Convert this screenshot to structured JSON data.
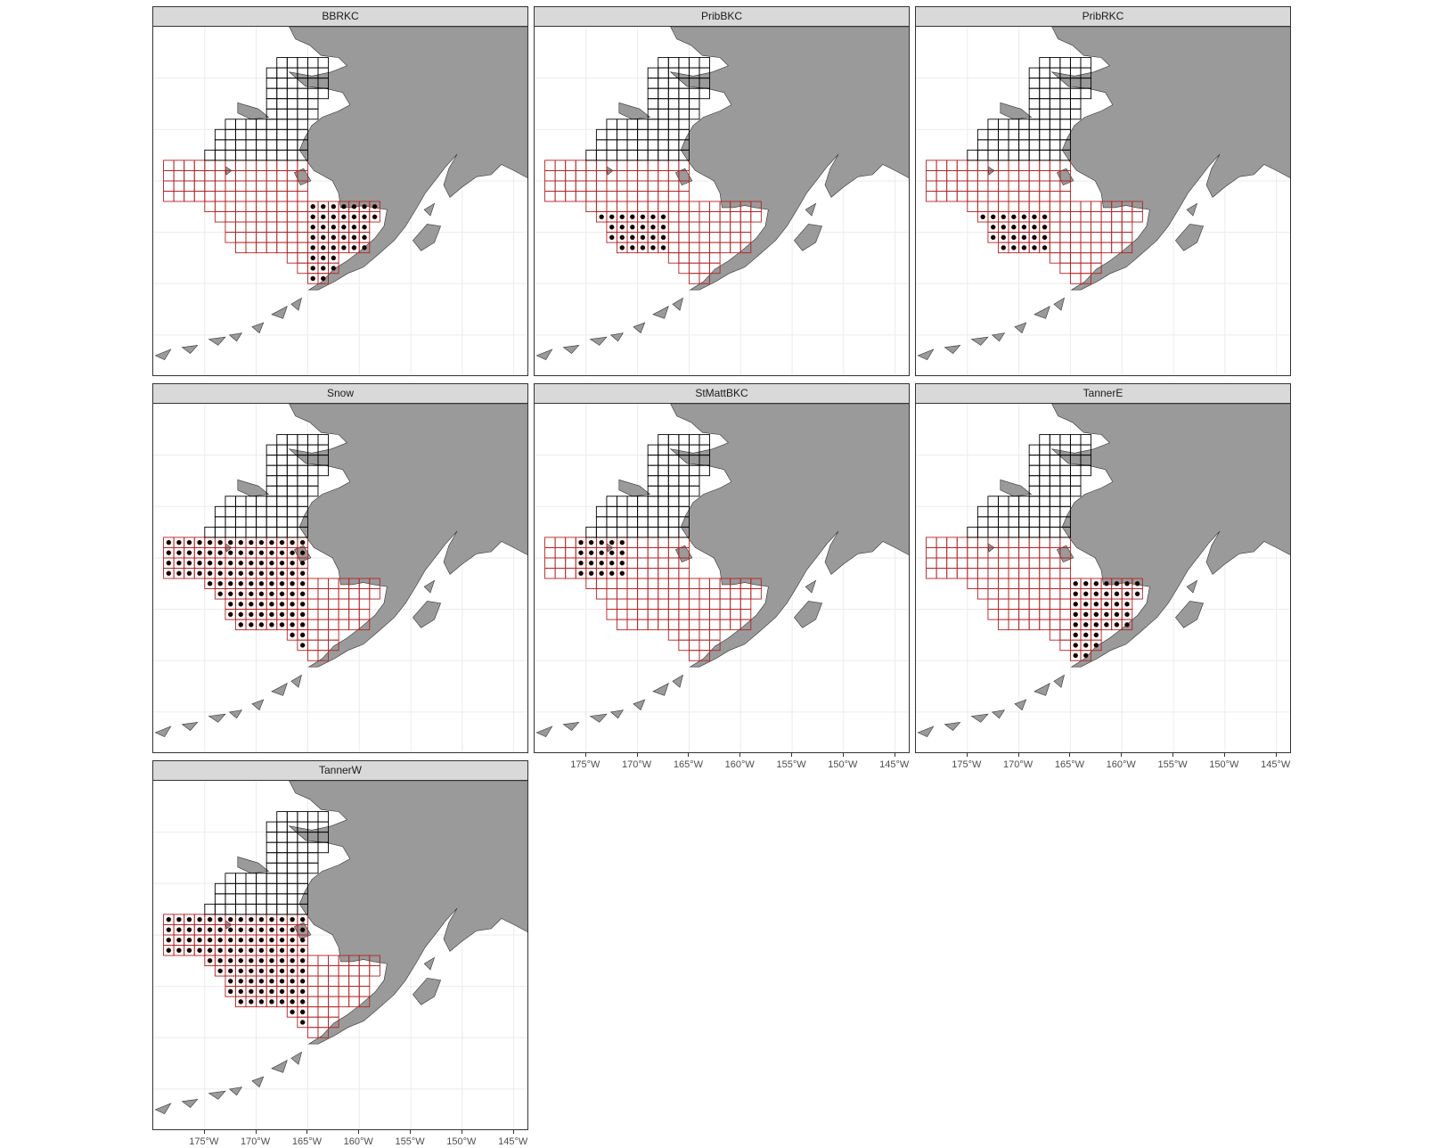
{
  "figure": {
    "panels": [
      {
        "label": "BBRKC",
        "highlight": "east"
      },
      {
        "label": "PribBKC",
        "highlight": "pribilof"
      },
      {
        "label": "PribRKC",
        "highlight": "pribilof"
      },
      {
        "label": "Snow",
        "highlight": "west_wide"
      },
      {
        "label": "StMattBKC",
        "highlight": "stmatthew"
      },
      {
        "label": "TannerE",
        "highlight": "east"
      },
      {
        "label": "TannerW",
        "highlight": "west_wide"
      }
    ],
    "x_axis": {
      "ticks": [
        "175°W",
        "170°W",
        "165°W",
        "160°W",
        "155°W",
        "150°W",
        "145°W"
      ],
      "tick_values": [
        -175,
        -170,
        -165,
        -160,
        -155,
        -150,
        -145
      ],
      "range": [
        -180,
        -143.5
      ]
    },
    "y_axis": {
      "ticks": [],
      "range": [
        50.5,
        67.5
      ]
    },
    "grid": true,
    "colors": {
      "land": "#9a9a9a",
      "north_grid": "#000000",
      "south_grid": "#b22222",
      "points": "#000000",
      "strip_bg": "#d9d9d9"
    }
  }
}
